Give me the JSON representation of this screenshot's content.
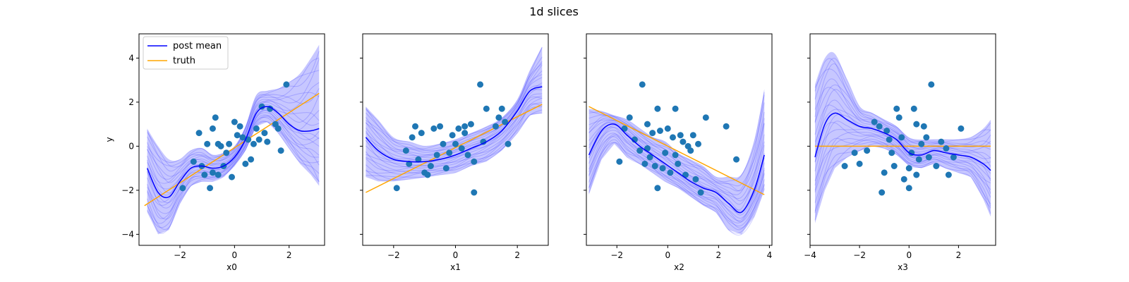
{
  "figure": {
    "title": "1d slices"
  },
  "chart_data": [
    {
      "type": "line",
      "xlabel": "x0",
      "ylabel": "y",
      "xlim": [
        -3.5,
        3.3
      ],
      "ylim": [
        -4.5,
        5.1
      ],
      "xticks": [
        -2,
        0,
        2
      ],
      "yticks": [
        -4,
        -2,
        0,
        2,
        4
      ],
      "legend": {
        "placement": "top-left",
        "entries": [
          {
            "label": "post mean",
            "color": "#0000ff"
          },
          {
            "label": "truth",
            "color": "#ffa500"
          }
        ]
      },
      "series": [
        {
          "name": "post mean",
          "color": "#0000ff",
          "x": [
            -3.2,
            -2.8,
            -2.4,
            -2.0,
            -1.6,
            -1.2,
            -0.8,
            -0.4,
            0.0,
            0.4,
            0.8,
            1.2,
            1.6,
            2.0,
            2.4,
            2.8,
            3.1
          ],
          "y": [
            -1.0,
            -2.1,
            -2.3,
            -1.6,
            -1.0,
            -0.9,
            -1.0,
            -0.9,
            -0.5,
            0.3,
            1.5,
            1.8,
            1.5,
            1.0,
            0.7,
            0.7,
            0.8
          ]
        },
        {
          "name": "truth",
          "color": "#ffa500",
          "x": [
            -3.3,
            3.1
          ],
          "y": [
            -2.7,
            2.4
          ]
        }
      ],
      "band": {
        "color": "#0000ff",
        "lower": [
          -3.0,
          -4.0,
          -3.8,
          -2.6,
          -1.8,
          -1.6,
          -1.6,
          -1.4,
          -0.9,
          -0.2,
          0.9,
          1.1,
          0.6,
          -0.1,
          -0.8,
          -1.3,
          -1.8
        ],
        "upper": [
          0.8,
          0.0,
          -0.6,
          -0.6,
          -0.2,
          -0.1,
          -0.4,
          -0.3,
          0.0,
          0.9,
          2.3,
          2.5,
          2.6,
          2.9,
          3.3,
          4.0,
          4.6
        ]
      },
      "scatter": [
        [
          -1.9,
          -1.9
        ],
        [
          -1.1,
          -1.3
        ],
        [
          -0.9,
          -1.9
        ],
        [
          -0.8,
          -1.2
        ],
        [
          -0.6,
          -1.3
        ],
        [
          -1.2,
          -0.9
        ],
        [
          -1.0,
          0.1
        ],
        [
          -0.8,
          0.8
        ],
        [
          -0.7,
          1.3
        ],
        [
          -0.5,
          0.0
        ],
        [
          -0.3,
          -0.3
        ],
        [
          -0.2,
          0.1
        ],
        [
          0.0,
          1.1
        ],
        [
          0.1,
          0.5
        ],
        [
          0.2,
          0.9
        ],
        [
          0.4,
          -0.8
        ],
        [
          0.5,
          0.3
        ],
        [
          0.6,
          -0.6
        ],
        [
          0.7,
          0.1
        ],
        [
          0.8,
          0.8
        ],
        [
          0.9,
          0.3
        ],
        [
          1.0,
          1.8
        ],
        [
          1.1,
          0.6
        ],
        [
          1.3,
          1.7
        ],
        [
          1.5,
          1.0
        ],
        [
          1.6,
          0.8
        ],
        [
          1.7,
          -0.2
        ],
        [
          1.9,
          2.8
        ],
        [
          -0.1,
          -1.4
        ],
        [
          -0.4,
          -0.9
        ],
        [
          -1.3,
          0.6
        ],
        [
          -1.5,
          -0.7
        ],
        [
          0.3,
          0.4
        ],
        [
          1.2,
          0.2
        ],
        [
          -0.6,
          0.1
        ]
      ]
    },
    {
      "type": "line",
      "xlabel": "x1",
      "ylim": [
        -4.5,
        5.1
      ],
      "xlim": [
        -3.0,
        3.0
      ],
      "xticks": [
        -2,
        0,
        2
      ],
      "series": [
        {
          "name": "post mean",
          "color": "#0000ff",
          "x": [
            -2.9,
            -2.5,
            -2.0,
            -1.5,
            -1.0,
            -0.5,
            0.0,
            0.5,
            1.0,
            1.5,
            2.0,
            2.4,
            2.8
          ],
          "y": [
            0.4,
            -0.2,
            -0.6,
            -0.7,
            -0.7,
            -0.6,
            -0.4,
            -0.1,
            0.2,
            0.7,
            1.6,
            2.5,
            2.7
          ]
        },
        {
          "name": "truth",
          "color": "#ffa500",
          "x": [
            -2.9,
            2.8
          ],
          "y": [
            -2.1,
            1.9
          ]
        }
      ],
      "band": {
        "color": "#0000ff",
        "lower": [
          -1.4,
          -1.6,
          -1.6,
          -1.5,
          -1.4,
          -1.3,
          -1.2,
          -0.9,
          -0.7,
          -0.2,
          0.6,
          1.4,
          1.5
        ],
        "upper": [
          1.8,
          1.2,
          0.4,
          0.2,
          0.0,
          0.1,
          0.3,
          0.6,
          0.9,
          1.3,
          2.1,
          3.4,
          4.5
        ]
      },
      "scatter": [
        [
          -1.9,
          -1.9
        ],
        [
          -1.6,
          -0.2
        ],
        [
          -1.4,
          0.4
        ],
        [
          -1.3,
          0.9
        ],
        [
          -1.1,
          0.6
        ],
        [
          -1.0,
          -1.2
        ],
        [
          -0.8,
          -0.9
        ],
        [
          -0.7,
          0.8
        ],
        [
          -0.5,
          0.9
        ],
        [
          -0.4,
          0.1
        ],
        [
          -0.3,
          -1.0
        ],
        [
          -0.2,
          -0.3
        ],
        [
          0.0,
          0.1
        ],
        [
          0.1,
          0.8
        ],
        [
          0.3,
          0.6
        ],
        [
          0.4,
          -0.4
        ],
        [
          0.5,
          1.0
        ],
        [
          0.6,
          -2.1
        ],
        [
          0.8,
          2.8
        ],
        [
          1.0,
          1.7
        ],
        [
          1.3,
          0.9
        ],
        [
          1.4,
          1.3
        ],
        [
          1.6,
          1.1
        ],
        [
          1.7,
          0.1
        ],
        [
          0.2,
          -0.1
        ],
        [
          0.6,
          -0.7
        ],
        [
          -0.9,
          -1.3
        ],
        [
          -1.5,
          -0.8
        ],
        [
          0.9,
          0.2
        ],
        [
          -0.1,
          0.5
        ],
        [
          -1.2,
          -0.6
        ],
        [
          0.3,
          0.9
        ],
        [
          -0.6,
          -0.4
        ],
        [
          1.5,
          1.7
        ]
      ]
    },
    {
      "type": "line",
      "xlabel": "x2",
      "ylim": [
        -4.5,
        5.1
      ],
      "xlim": [
        -3.2,
        4.1
      ],
      "xticks": [
        -2,
        0,
        2,
        4
      ],
      "series": [
        {
          "name": "post mean",
          "color": "#0000ff",
          "x": [
            -3.1,
            -2.6,
            -2.1,
            -1.6,
            -1.1,
            -0.6,
            -0.1,
            0.4,
            0.9,
            1.4,
            1.9,
            2.4,
            2.9,
            3.4,
            3.8
          ],
          "y": [
            -0.4,
            0.7,
            1.0,
            0.5,
            0.0,
            -0.4,
            -0.8,
            -1.2,
            -1.6,
            -1.9,
            -2.1,
            -2.6,
            -3.0,
            -2.0,
            -0.4
          ]
        },
        {
          "name": "truth",
          "color": "#ffa500",
          "x": [
            -3.1,
            3.8
          ],
          "y": [
            1.8,
            -2.2
          ]
        }
      ],
      "band": {
        "color": "#0000ff",
        "lower": [
          -2.2,
          -0.6,
          0.1,
          -0.5,
          -0.8,
          -1.2,
          -1.6,
          -1.9,
          -2.3,
          -2.7,
          -3.0,
          -3.8,
          -4.0,
          -3.2,
          -2.0
        ],
        "upper": [
          1.7,
          1.6,
          1.4,
          1.2,
          0.8,
          0.4,
          0.2,
          -0.3,
          -0.6,
          -0.9,
          -1.4,
          -1.4,
          -1.3,
          0.2,
          2.6
        ]
      },
      "scatter": [
        [
          -1.9,
          -0.7
        ],
        [
          -1.7,
          0.8
        ],
        [
          -1.5,
          1.3
        ],
        [
          -1.3,
          0.3
        ],
        [
          -1.1,
          -0.2
        ],
        [
          -1.0,
          2.8
        ],
        [
          -0.9,
          -0.8
        ],
        [
          -0.8,
          1.0
        ],
        [
          -0.7,
          -0.5
        ],
        [
          -0.6,
          0.6
        ],
        [
          -0.5,
          -0.9
        ],
        [
          -0.4,
          1.7
        ],
        [
          -0.3,
          0.7
        ],
        [
          -0.2,
          -1.0
        ],
        [
          -0.1,
          -0.3
        ],
        [
          0.0,
          0.8
        ],
        [
          0.1,
          -1.2
        ],
        [
          0.2,
          0.4
        ],
        [
          0.3,
          1.7
        ],
        [
          0.4,
          -0.8
        ],
        [
          0.5,
          0.5
        ],
        [
          0.6,
          0.2
        ],
        [
          0.7,
          -1.3
        ],
        [
          0.8,
          0.0
        ],
        [
          0.9,
          -0.2
        ],
        [
          1.0,
          0.5
        ],
        [
          1.1,
          -1.5
        ],
        [
          1.2,
          0.1
        ],
        [
          1.3,
          -2.1
        ],
        [
          1.5,
          1.3
        ],
        [
          2.3,
          0.9
        ],
        [
          2.7,
          -0.6
        ],
        [
          -0.4,
          -1.9
        ],
        [
          0.3,
          -0.4
        ],
        [
          -0.8,
          -0.1
        ]
      ]
    },
    {
      "type": "line",
      "xlabel": "x3",
      "ylim": [
        -4.5,
        5.1
      ],
      "xlim": [
        -4.0,
        3.5
      ],
      "xticks": [
        -4,
        -2,
        0,
        2
      ],
      "series": [
        {
          "name": "post mean",
          "color": "#0000ff",
          "x": [
            -3.8,
            -3.4,
            -3.0,
            -2.5,
            -2.0,
            -1.5,
            -1.0,
            -0.5,
            0.0,
            0.5,
            1.0,
            1.5,
            2.0,
            2.5,
            3.0,
            3.3
          ],
          "y": [
            -0.5,
            1.0,
            1.5,
            1.2,
            0.9,
            0.8,
            0.6,
            0.3,
            -0.3,
            -0.4,
            -0.2,
            -0.3,
            -0.4,
            -0.5,
            -0.8,
            -1.1
          ]
        },
        {
          "name": "truth",
          "color": "#ffa500",
          "x": [
            -3.8,
            3.3
          ],
          "y": [
            0.0,
            0.0
          ]
        }
      ],
      "band": {
        "color": "#0000ff",
        "lower": [
          -3.5,
          -2.0,
          -1.0,
          -0.5,
          -0.2,
          0.0,
          -0.1,
          -0.4,
          -0.9,
          -1.0,
          -0.8,
          -1.0,
          -1.2,
          -1.4,
          -2.4,
          -3.2
        ],
        "upper": [
          2.8,
          4.0,
          4.2,
          3.0,
          1.8,
          1.5,
          1.2,
          0.9,
          0.4,
          0.3,
          0.3,
          0.3,
          0.3,
          0.4,
          0.8,
          1.2
        ]
      },
      "scatter": [
        [
          -2.6,
          -0.9
        ],
        [
          -2.2,
          -0.3
        ],
        [
          -2.0,
          -0.8
        ],
        [
          -1.7,
          -0.2
        ],
        [
          -1.4,
          1.1
        ],
        [
          -1.2,
          0.9
        ],
        [
          -1.0,
          -1.2
        ],
        [
          -0.9,
          0.7
        ],
        [
          -0.8,
          0.3
        ],
        [
          -0.7,
          -0.3
        ],
        [
          -0.5,
          1.7
        ],
        [
          -0.4,
          1.3
        ],
        [
          -0.3,
          0.4
        ],
        [
          -0.2,
          -1.5
        ],
        [
          0.0,
          -1.9
        ],
        [
          0.1,
          -0.3
        ],
        [
          0.2,
          1.7
        ],
        [
          0.3,
          1.0
        ],
        [
          0.4,
          -0.6
        ],
        [
          0.5,
          0.1
        ],
        [
          0.6,
          0.9
        ],
        [
          0.8,
          -0.5
        ],
        [
          0.9,
          2.8
        ],
        [
          1.1,
          -0.9
        ],
        [
          1.3,
          0.2
        ],
        [
          1.5,
          -0.1
        ],
        [
          1.6,
          -1.3
        ],
        [
          1.8,
          -0.5
        ],
        [
          2.1,
          0.8
        ],
        [
          -1.1,
          -2.1
        ],
        [
          0.0,
          -1.0
        ],
        [
          0.3,
          -1.3
        ],
        [
          -0.6,
          -0.9
        ],
        [
          0.7,
          0.4
        ]
      ]
    }
  ]
}
